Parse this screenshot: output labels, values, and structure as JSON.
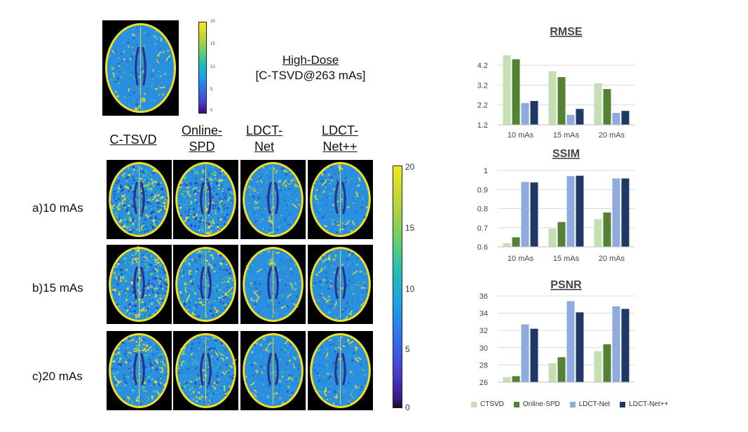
{
  "high_dose": {
    "line1": "High-Dose",
    "line2": "[C-TSVD@263 mAs]"
  },
  "small_colorbar_ticks": [
    "20",
    "15",
    "10",
    "5",
    "0"
  ],
  "big_colorbar_ticks": [
    "20",
    "15",
    "10",
    "5",
    "0"
  ],
  "column_headers": [
    {
      "line1": "C-TSVD",
      "line2": ""
    },
    {
      "line1": "Online-",
      "line2": "SPD"
    },
    {
      "line1": "LDCT-",
      "line2": "Net"
    },
    {
      "line1": "LDCT-",
      "line2": "Net++"
    }
  ],
  "row_labels": [
    "a)10 mAs",
    "b)15 mAs",
    "c)20 mAs"
  ],
  "colors": {
    "CTSVD": "#c5dfb4",
    "Online-SPD": "#548235",
    "LDCT-Net": "#8faadc",
    "LDCT-Net++": "#203864"
  },
  "chart_data": [
    {
      "type": "bar",
      "title": "RMSE",
      "categories": [
        "10 mAs",
        "15 mAs",
        "20  mAs"
      ],
      "ylim": [
        1.2,
        4.8
      ],
      "yticks": [
        "1.2",
        "2.2",
        "3.2",
        "4.2"
      ],
      "grid": true,
      "series": [
        {
          "name": "CTSVD",
          "values": [
            4.7,
            3.9,
            3.3
          ]
        },
        {
          "name": "Online-SPD",
          "values": [
            4.5,
            3.6,
            3.0
          ]
        },
        {
          "name": "LDCT-Net",
          "values": [
            2.3,
            1.7,
            1.8
          ]
        },
        {
          "name": "LDCT-Net++",
          "values": [
            2.4,
            2.0,
            1.9
          ]
        }
      ]
    },
    {
      "type": "bar",
      "title": "SSIM",
      "categories": [
        "10 mAs",
        "15 mAs",
        "20 mAs"
      ],
      "ylim": [
        0.6,
        1.0
      ],
      "yticks": [
        "0.6",
        "0.7",
        "0.8",
        "0.9",
        "1"
      ],
      "grid": true,
      "series": [
        {
          "name": "CTSVD",
          "values": [
            0.62,
            0.695,
            0.745
          ]
        },
        {
          "name": "Online-SPD",
          "values": [
            0.65,
            0.73,
            0.78
          ]
        },
        {
          "name": "LDCT-Net",
          "values": [
            0.94,
            0.97,
            0.958
          ]
        },
        {
          "name": "LDCT-Net++",
          "values": [
            0.937,
            0.972,
            0.958
          ]
        }
      ]
    },
    {
      "type": "bar",
      "title": "PSNR",
      "categories": [
        "",
        "",
        ""
      ],
      "ylim": [
        26,
        36
      ],
      "yticks": [
        "26",
        "28",
        "30",
        "32",
        "34",
        "36"
      ],
      "grid": true,
      "series": [
        {
          "name": "CTSVD",
          "values": [
            26.6,
            28.2,
            29.6
          ]
        },
        {
          "name": "Online-SPD",
          "values": [
            26.7,
            28.9,
            30.4
          ]
        },
        {
          "name": "LDCT-Net",
          "values": [
            32.7,
            35.4,
            34.8
          ]
        },
        {
          "name": "LDCT-Net++",
          "values": [
            32.2,
            34.1,
            34.5
          ]
        }
      ]
    }
  ],
  "legend": [
    "CTSVD",
    "Online-SPD",
    "LDCT-Net",
    "LDCT-Net++"
  ]
}
